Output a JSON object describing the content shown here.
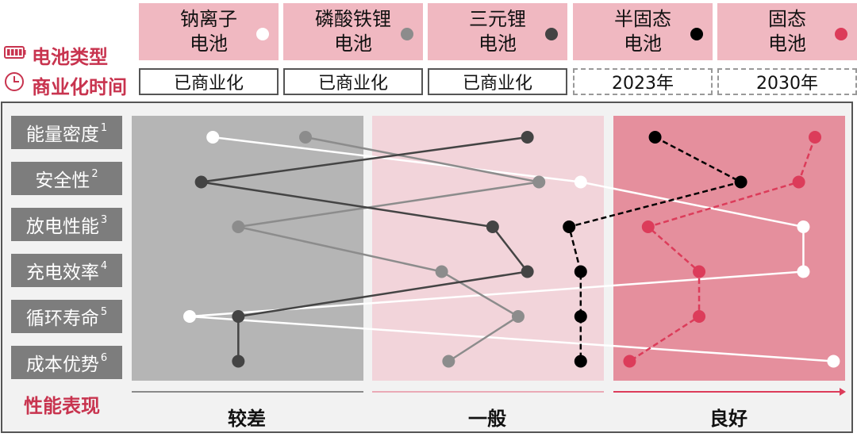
{
  "legend": {
    "type_label": "电池类型",
    "time_label": "商业化时间"
  },
  "battery_types": [
    {
      "line1": "钠离子",
      "line2": "电池",
      "date": "已商业化",
      "color": "#ffffff",
      "dashed": false
    },
    {
      "line1": "磷酸铁锂",
      "line2": "电池",
      "date": "已商业化",
      "color": "#8c8c8c",
      "dashed": false
    },
    {
      "line1": "三元锂",
      "line2": "电池",
      "date": "已商业化",
      "color": "#444444",
      "dashed": false
    },
    {
      "line1": "半固态",
      "line2": "电池",
      "date": "2023年",
      "color": "#000000",
      "dashed": true
    },
    {
      "line1": "固态",
      "line2": "电池",
      "date": "2030年",
      "color": "#dc3c5a",
      "dashed": true
    }
  ],
  "metrics": [
    {
      "label": "能量密度",
      "note": "1"
    },
    {
      "label": "安全性",
      "note": "2"
    },
    {
      "label": "放电性能",
      "note": "3"
    },
    {
      "label": "充电效率",
      "note": "4"
    },
    {
      "label": "循环寿命",
      "note": "5"
    },
    {
      "label": "成本优势",
      "note": "6"
    }
  ],
  "axis": {
    "title": "性能表现",
    "levels": [
      "较差",
      "一般",
      "良好"
    ],
    "zone_colors": [
      "#b5b5b5",
      "#f2d4da",
      "#e58f9d"
    ]
  },
  "chart_data": {
    "type": "line",
    "title": "",
    "xlabel": "性能表现",
    "ylabel": "",
    "x_scale": "ordinal score 0–3 (0–1 较差, 1–2 一般, 2–3 良好)",
    "xlim": [
      0,
      3
    ],
    "categories": [
      "能量密度",
      "安全性",
      "放电性能",
      "充电效率",
      "循环寿命",
      "成本优势"
    ],
    "series": [
      {
        "name": "钠离子电池",
        "color": "#ffffff",
        "dashed": false,
        "values": [
          0.35,
          1.9,
          2.82,
          2.82,
          0.25,
          2.95
        ]
      },
      {
        "name": "磷酸铁锂电池",
        "color": "#8c8c8c",
        "dashed": false,
        "values": [
          0.75,
          1.72,
          0.46,
          1.3,
          1.63,
          1.33
        ]
      },
      {
        "name": "三元锂电池",
        "color": "#444444",
        "dashed": false,
        "values": [
          1.67,
          0.3,
          1.52,
          1.67,
          0.46,
          0.46
        ]
      },
      {
        "name": "半固态电池",
        "color": "#000000",
        "dashed": true,
        "values": [
          2.18,
          2.55,
          1.85,
          1.9,
          1.9,
          1.9
        ]
      },
      {
        "name": "固态电池",
        "color": "#dc3c5a",
        "dashed": true,
        "values": [
          2.87,
          2.8,
          2.15,
          2.37,
          2.37,
          2.07
        ]
      }
    ]
  }
}
